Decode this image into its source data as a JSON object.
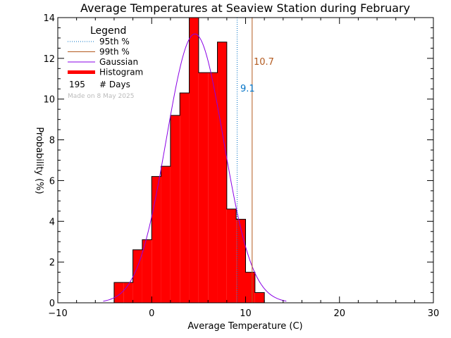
{
  "chart_data": {
    "type": "bar",
    "title": "Average Temperatures at Seaview Station during February",
    "xlabel": "Average Temperature (C)",
    "ylabel": "Probability (%)",
    "xlim": [
      -10,
      30
    ],
    "ylim": [
      0,
      14
    ],
    "xticks": [
      -10,
      0,
      10,
      20,
      30
    ],
    "yticks": [
      0,
      2,
      4,
      6,
      8,
      10,
      12,
      14
    ],
    "histogram": {
      "bin_width": 1,
      "bins": [
        {
          "x0": -4,
          "value": 1.0
        },
        {
          "x0": -3,
          "value": 1.0
        },
        {
          "x0": -2,
          "value": 2.6
        },
        {
          "x0": -1,
          "value": 3.1
        },
        {
          "x0": 0,
          "value": 6.2
        },
        {
          "x0": 1,
          "value": 6.7
        },
        {
          "x0": 2,
          "value": 9.2
        },
        {
          "x0": 3,
          "value": 10.3
        },
        {
          "x0": 4,
          "value": 14.0
        },
        {
          "x0": 5,
          "value": 11.3
        },
        {
          "x0": 6,
          "value": 11.3
        },
        {
          "x0": 7,
          "value": 12.8
        },
        {
          "x0": 8,
          "value": 4.6
        },
        {
          "x0": 9,
          "value": 4.1
        },
        {
          "x0": 10,
          "value": 1.5
        },
        {
          "x0": 11,
          "value": 0.5
        }
      ]
    },
    "gaussian": {
      "mean": 4.6,
      "sigma": 3.05,
      "peak": 13.2
    },
    "percentile_95": {
      "value": 9.1,
      "label": "9.1",
      "color": "#0072c6"
    },
    "percentile_99": {
      "value": 10.7,
      "label": "10.7",
      "color": "#b35a1f"
    },
    "colors": {
      "histogram": "#ff0000",
      "gaussian": "#8a00e6",
      "p95": "#0072c6",
      "p99": "#b35a1f"
    },
    "legend": {
      "placement": "top-left",
      "title": "Legend",
      "entries": [
        {
          "key": "p95",
          "label": "95th %"
        },
        {
          "key": "p99",
          "label": "99th %"
        },
        {
          "key": "gaussian",
          "label": "Gaussian"
        },
        {
          "key": "histogram",
          "label": "Histogram"
        }
      ],
      "days_count": "195",
      "days_label": "# Days"
    },
    "made_on": "Made on 8 May 2025"
  }
}
